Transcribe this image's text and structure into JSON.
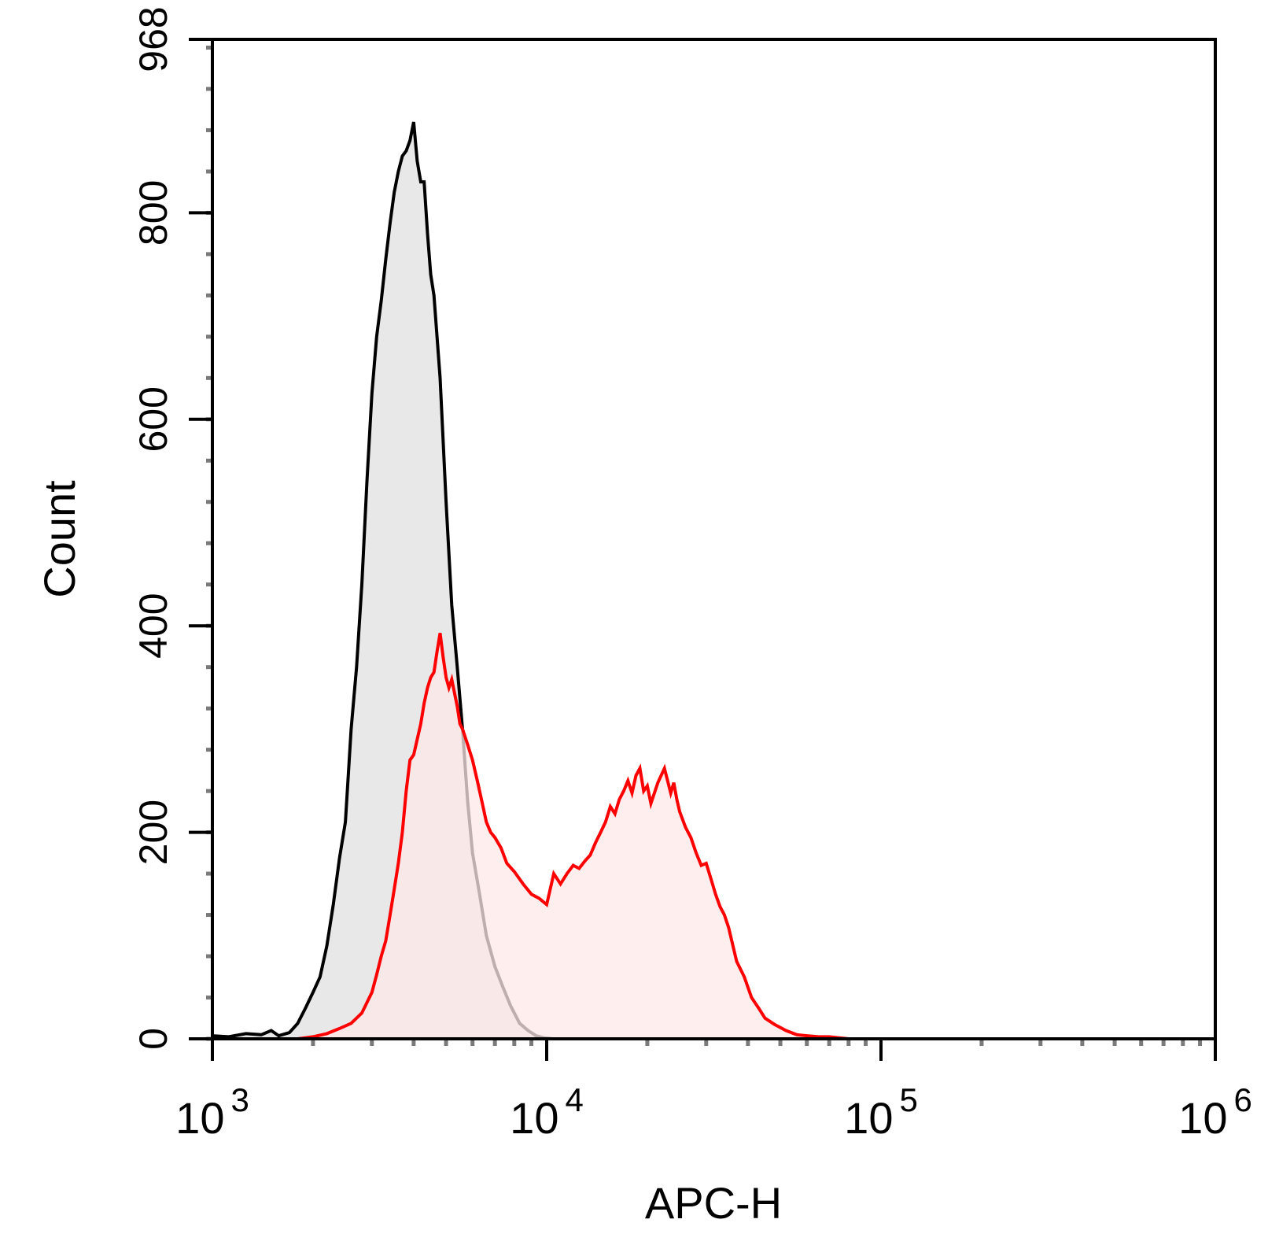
{
  "chart_data": {
    "type": "area",
    "title": "",
    "xlabel": "APC-H",
    "ylabel": "Count",
    "xscale": "log",
    "xlim": [
      1000,
      1000000
    ],
    "ylim": [
      0,
      968
    ],
    "grid": false,
    "legend": "none",
    "y_ticks": [
      {
        "value": 0,
        "label": "0"
      },
      {
        "value": 200,
        "label": "200"
      },
      {
        "value": 400,
        "label": "400"
      },
      {
        "value": 600,
        "label": "600"
      },
      {
        "value": 800,
        "label": "800"
      },
      {
        "value": 968,
        "label": "968"
      }
    ],
    "x_ticks": [
      {
        "value": 1000,
        "base": "10",
        "exp": "3"
      },
      {
        "value": 10000,
        "base": "10",
        "exp": "4"
      },
      {
        "value": 100000,
        "base": "10",
        "exp": "5"
      },
      {
        "value": 1000000,
        "base": "10",
        "exp": "6"
      }
    ],
    "series": [
      {
        "stroke": "#000000",
        "fill": "#e8e8e8",
        "points": [
          [
            1000,
            3
          ],
          [
            1120,
            2
          ],
          [
            1260,
            5
          ],
          [
            1400,
            4
          ],
          [
            1500,
            8
          ],
          [
            1580,
            3
          ],
          [
            1700,
            6
          ],
          [
            1800,
            15
          ],
          [
            1900,
            30
          ],
          [
            2000,
            45
          ],
          [
            2100,
            60
          ],
          [
            2200,
            90
          ],
          [
            2300,
            130
          ],
          [
            2400,
            175
          ],
          [
            2500,
            210
          ],
          [
            2600,
            300
          ],
          [
            2700,
            360
          ],
          [
            2800,
            440
          ],
          [
            2900,
            540
          ],
          [
            3000,
            625
          ],
          [
            3100,
            680
          ],
          [
            3200,
            715
          ],
          [
            3300,
            755
          ],
          [
            3400,
            790
          ],
          [
            3500,
            820
          ],
          [
            3600,
            840
          ],
          [
            3700,
            855
          ],
          [
            3800,
            860
          ],
          [
            3900,
            870
          ],
          [
            4000,
            888
          ],
          [
            4100,
            850
          ],
          [
            4200,
            830
          ],
          [
            4300,
            830
          ],
          [
            4400,
            780
          ],
          [
            4500,
            740
          ],
          [
            4600,
            720
          ],
          [
            4800,
            640
          ],
          [
            5000,
            520
          ],
          [
            5200,
            420
          ],
          [
            5400,
            360
          ],
          [
            5600,
            300
          ],
          [
            5800,
            230
          ],
          [
            6000,
            180
          ],
          [
            6300,
            140
          ],
          [
            6600,
            100
          ],
          [
            7000,
            70
          ],
          [
            7400,
            50
          ],
          [
            7800,
            32
          ],
          [
            8300,
            15
          ],
          [
            8800,
            8
          ],
          [
            9300,
            3
          ],
          [
            9800,
            1
          ],
          [
            10500,
            0
          ],
          [
            12000,
            0
          ]
        ]
      },
      {
        "stroke": "#ff0000",
        "fill": "#fde8e8",
        "points": [
          [
            1800,
            0
          ],
          [
            2000,
            2
          ],
          [
            2200,
            5
          ],
          [
            2400,
            10
          ],
          [
            2600,
            15
          ],
          [
            2800,
            25
          ],
          [
            3000,
            45
          ],
          [
            3100,
            62
          ],
          [
            3200,
            80
          ],
          [
            3300,
            95
          ],
          [
            3400,
            120
          ],
          [
            3500,
            145
          ],
          [
            3600,
            170
          ],
          [
            3700,
            200
          ],
          [
            3800,
            240
          ],
          [
            3900,
            270
          ],
          [
            4000,
            275
          ],
          [
            4100,
            290
          ],
          [
            4200,
            305
          ],
          [
            4300,
            325
          ],
          [
            4400,
            340
          ],
          [
            4500,
            350
          ],
          [
            4600,
            355
          ],
          [
            4700,
            375
          ],
          [
            4800,
            393
          ],
          [
            4900,
            370
          ],
          [
            5000,
            350
          ],
          [
            5100,
            340
          ],
          [
            5200,
            348
          ],
          [
            5300,
            335
          ],
          [
            5400,
            322
          ],
          [
            5500,
            305
          ],
          [
            5600,
            300
          ],
          [
            5800,
            285
          ],
          [
            6000,
            270
          ],
          [
            6200,
            250
          ],
          [
            6400,
            230
          ],
          [
            6600,
            210
          ],
          [
            6800,
            200
          ],
          [
            7000,
            195
          ],
          [
            7300,
            185
          ],
          [
            7600,
            170
          ],
          [
            8000,
            162
          ],
          [
            8500,
            150
          ],
          [
            9000,
            140
          ],
          [
            9500,
            136
          ],
          [
            10000,
            130
          ],
          [
            10500,
            160
          ],
          [
            11000,
            150
          ],
          [
            11500,
            160
          ],
          [
            12000,
            168
          ],
          [
            12500,
            165
          ],
          [
            13000,
            172
          ],
          [
            13500,
            178
          ],
          [
            14000,
            190
          ],
          [
            14500,
            200
          ],
          [
            15000,
            210
          ],
          [
            15500,
            225
          ],
          [
            16000,
            218
          ],
          [
            16500,
            232
          ],
          [
            17000,
            240
          ],
          [
            17500,
            250
          ],
          [
            18000,
            238
          ],
          [
            18500,
            255
          ],
          [
            19000,
            262
          ],
          [
            19500,
            240
          ],
          [
            20000,
            245
          ],
          [
            20500,
            228
          ],
          [
            21000,
            238
          ],
          [
            21500,
            248
          ],
          [
            22000,
            255
          ],
          [
            22500,
            262
          ],
          [
            23000,
            250
          ],
          [
            23500,
            238
          ],
          [
            24000,
            248
          ],
          [
            24500,
            232
          ],
          [
            25000,
            220
          ],
          [
            26000,
            205
          ],
          [
            27000,
            195
          ],
          [
            28000,
            180
          ],
          [
            29000,
            168
          ],
          [
            30000,
            170
          ],
          [
            31000,
            155
          ],
          [
            32000,
            140
          ],
          [
            33000,
            128
          ],
          [
            34000,
            120
          ],
          [
            35000,
            108
          ],
          [
            37000,
            75
          ],
          [
            39000,
            60
          ],
          [
            41000,
            40
          ],
          [
            43000,
            30
          ],
          [
            45000,
            20
          ],
          [
            48000,
            14
          ],
          [
            52000,
            8
          ],
          [
            56000,
            4
          ],
          [
            60000,
            3
          ],
          [
            65000,
            2
          ],
          [
            70000,
            2
          ],
          [
            75000,
            1
          ],
          [
            80000,
            0
          ]
        ]
      }
    ]
  }
}
